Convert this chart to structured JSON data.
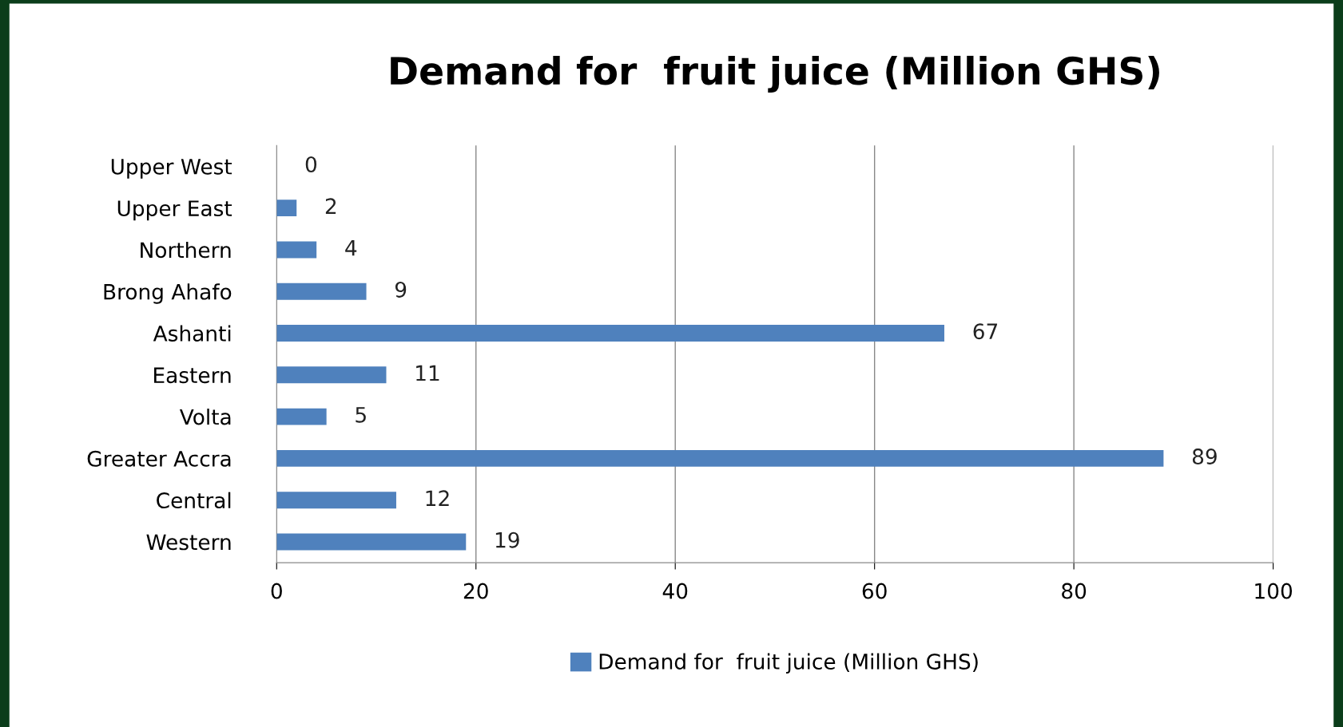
{
  "chart_data": {
    "type": "bar",
    "orientation": "horizontal",
    "title": "Demand for  fruit juice (Million GHS)",
    "categories": [
      "Upper West",
      "Upper East",
      "Northern",
      "Brong Ahafo",
      "Ashanti",
      "Eastern",
      "Volta",
      "Greater Accra",
      "Central",
      "Western"
    ],
    "series": [
      {
        "name": "Demand for  fruit juice (Million GHS)",
        "color": "#4f81bd",
        "values": [
          0,
          2,
          4,
          9,
          67,
          11,
          5,
          89,
          12,
          19
        ]
      }
    ],
    "xlim": [
      0,
      100
    ],
    "xticks": [
      0,
      20,
      40,
      60,
      80,
      100
    ],
    "grid": "x",
    "legend": "bottom",
    "data_labels": true
  }
}
